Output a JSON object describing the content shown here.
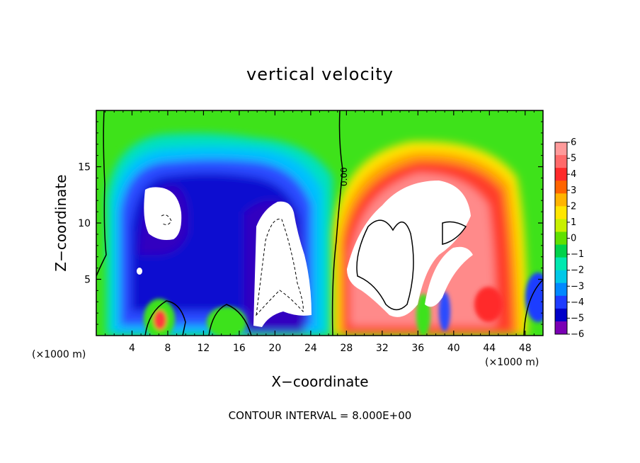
{
  "chart_data": {
    "type": "heatmap",
    "title": "vertical velocity",
    "xlabel": "X−coordinate",
    "ylabel": "Z−coordinate",
    "x_unit_left": "(×1000 m)",
    "x_unit_right": "(×1000 m)",
    "xlim": [
      0,
      50
    ],
    "ylim": [
      0,
      20
    ],
    "xticks": [
      4,
      8,
      12,
      16,
      20,
      24,
      28,
      32,
      36,
      40,
      44,
      48
    ],
    "xtick_labels": [
      "4",
      "8",
      "12",
      "16",
      "20",
      "24",
      "28",
      "32",
      "36",
      "40",
      "44",
      "48"
    ],
    "yticks": [
      5,
      10,
      15
    ],
    "ytick_labels": [
      "5",
      "10",
      "15"
    ],
    "note": "CONTOUR INTERVAL = 8.000E+00",
    "contour_label": "0.00",
    "colorbar": {
      "ticks": [
        6,
        5,
        4,
        3,
        2,
        1,
        0,
        -1,
        -2,
        -3,
        -4,
        -5,
        -6
      ],
      "tick_labels": [
        "6",
        "5",
        "4",
        "3",
        "2",
        "1",
        "0",
        "−1",
        "−2",
        "−3",
        "−4",
        "−5",
        "−6"
      ],
      "colors": [
        "#ff9a9a",
        "#ff6a6a",
        "#ff2a2a",
        "#ff6400",
        "#ffb400",
        "#ffe600",
        "#c8f000",
        "#60e000",
        "#00d24a",
        "#00e8b0",
        "#00c8e8",
        "#0088ff",
        "#1e3cff",
        "#0000c8",
        "#7a00b4"
      ]
    },
    "regions": [
      {
        "kind": "updraft",
        "x": 37,
        "z": 9,
        "value": 6
      },
      {
        "kind": "downdraft",
        "x": 13,
        "z": 11,
        "value": -6
      },
      {
        "kind": "updraft-small",
        "x": 7,
        "z": 1.5,
        "value": 5
      }
    ]
  }
}
